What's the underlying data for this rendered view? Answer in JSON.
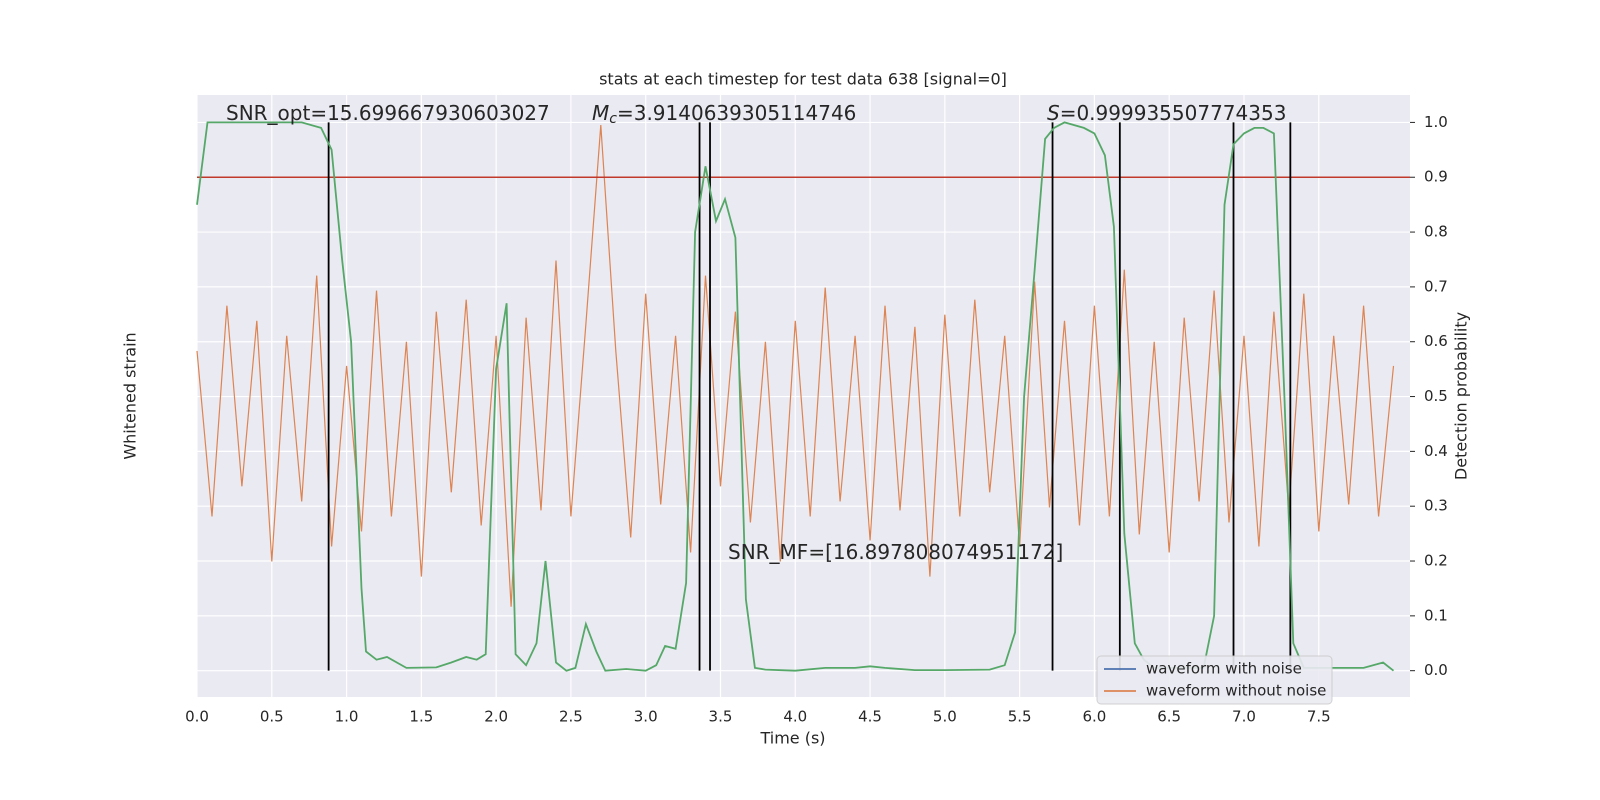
{
  "chart_data": {
    "type": "line",
    "title": "stats at each timestep for test data 638 [signal=0]",
    "xlabel": "Time (s)",
    "ylabel": "Whitened strain",
    "y2label": "Detection probability",
    "xlim": [
      0,
      8.11
    ],
    "xticks": [
      {
        "value": 0,
        "label": "0.0"
      },
      0.5,
      {
        "value": 1,
        "label": "1.0"
      },
      1.5,
      {
        "value": 2,
        "label": "2.0"
      },
      2.5,
      {
        "value": 3,
        "label": "3.0"
      },
      3.5,
      {
        "value": 4,
        "label": "4.0"
      },
      4.5,
      {
        "value": 5,
        "label": "5.0"
      },
      5.5,
      {
        "value": 6,
        "label": "6.0"
      },
      6.5,
      {
        "value": 7,
        "label": "7.0"
      },
      7.5
    ],
    "ylim": [
      -0.9,
      1.1
    ],
    "y2lim": [
      -0.048,
      1.05
    ],
    "y2ticks": [
      {
        "value": 0,
        "label": "0.0"
      },
      0.1,
      0.2,
      0.3,
      0.4,
      0.5,
      0.6,
      0.7,
      0.8,
      0.9,
      {
        "value": 1,
        "label": "1.0"
      }
    ],
    "grid": true,
    "legend_position": "lower right",
    "legend": [
      {
        "name": "waveform with noise",
        "color": "#4c72b0"
      },
      {
        "name": "waveform without noise",
        "color": "#dd8452"
      }
    ],
    "series": [
      {
        "color": "#dd8452",
        "axis": "y",
        "x": [
          0,
          0.1,
          0.2,
          0.3,
          0.4,
          0.5,
          0.6,
          0.7,
          0.8,
          0.9,
          1,
          1.1,
          1.2,
          1.3,
          1.4,
          1.5,
          1.6,
          1.7,
          1.8,
          1.9,
          2,
          2.1,
          2.2,
          2.3,
          2.4,
          2.5,
          2.6,
          2.7,
          2.8,
          2.9,
          3,
          3.1,
          3.2,
          3.3,
          3.4,
          3.5,
          3.6,
          3.7,
          3.8,
          3.9,
          4,
          4.1,
          4.2,
          4.3,
          4.4,
          4.5,
          4.6,
          4.7,
          4.8,
          4.9,
          5,
          5.1,
          5.2,
          5.3,
          5.4,
          5.5,
          5.6,
          5.7,
          5.8,
          5.9,
          6,
          6.1,
          6.2,
          6.3,
          6.4,
          6.5,
          6.6,
          6.7,
          6.8,
          6.9,
          7,
          7.1,
          7.2,
          7.3,
          7.4,
          7.5,
          7.6,
          7.7,
          7.8,
          7.9,
          8
        ],
        "values": [
          0.25,
          -0.3,
          0.4,
          -0.2,
          0.35,
          -0.45,
          0.3,
          -0.25,
          0.5,
          -0.4,
          0.2,
          -0.35,
          0.45,
          -0.3,
          0.28,
          -0.5,
          0.38,
          -0.22,
          0.42,
          -0.33,
          0.3,
          -0.6,
          0.36,
          -0.28,
          0.55,
          -0.3,
          0.34,
          1.0,
          0.25,
          -0.37,
          0.44,
          -0.26,
          0.3,
          -0.42,
          0.5,
          -0.2,
          0.38,
          -0.32,
          0.28,
          -0.45,
          0.35,
          -0.3,
          0.46,
          -0.25,
          0.3,
          -0.38,
          0.4,
          -0.28,
          0.33,
          -0.5,
          0.37,
          -0.3,
          0.42,
          -0.22,
          0.3,
          -0.4,
          0.48,
          -0.27,
          0.35,
          -0.33,
          0.4,
          -0.3,
          0.52,
          -0.36,
          0.28,
          -0.42,
          0.36,
          -0.25,
          0.45,
          -0.32,
          0.3,
          -0.4,
          0.38,
          -0.28,
          0.44,
          -0.35,
          0.3,
          -0.26,
          0.4,
          -0.3,
          0.2
        ]
      },
      {
        "color": "#55a868",
        "axis": "y2",
        "x": [
          0.0,
          0.07,
          0.2,
          0.5,
          0.7,
          0.83,
          0.9,
          0.97,
          1.03,
          1.1,
          1.13,
          1.2,
          1.27,
          1.4,
          1.6,
          1.7,
          1.8,
          1.87,
          1.93,
          2.0,
          2.07,
          2.13,
          2.2,
          2.27,
          2.33,
          2.4,
          2.47,
          2.53,
          2.6,
          2.67,
          2.73,
          2.87,
          3.0,
          3.07,
          3.13,
          3.2,
          3.27,
          3.33,
          3.4,
          3.47,
          3.53,
          3.6,
          3.67,
          3.73,
          3.8,
          4.0,
          4.2,
          4.4,
          4.5,
          4.6,
          4.8,
          5.0,
          5.3,
          5.4,
          5.47,
          5.53,
          5.6,
          5.67,
          5.73,
          5.8,
          5.93,
          6.0,
          6.07,
          6.13,
          6.2,
          6.27,
          6.33,
          6.4,
          6.6,
          6.73,
          6.8,
          6.87,
          6.93,
          7.0,
          7.07,
          7.13,
          7.2,
          7.27,
          7.33,
          7.4,
          7.8,
          7.93,
          8.0
        ],
        "values": [
          0.85,
          1.0,
          1.0,
          1.0,
          1.0,
          0.99,
          0.95,
          0.75,
          0.6,
          0.15,
          0.035,
          0.02,
          0.025,
          0.005,
          0.006,
          0.015,
          0.025,
          0.02,
          0.03,
          0.55,
          0.67,
          0.03,
          0.01,
          0.05,
          0.2,
          0.015,
          0.0,
          0.005,
          0.085,
          0.035,
          0.0,
          0.003,
          0.0,
          0.01,
          0.045,
          0.04,
          0.16,
          0.8,
          0.92,
          0.82,
          0.86,
          0.79,
          0.13,
          0.005,
          0.002,
          0.0,
          0.005,
          0.005,
          0.008,
          0.005,
          0.001,
          0.001,
          0.002,
          0.01,
          0.07,
          0.5,
          0.73,
          0.97,
          0.99,
          1.0,
          0.99,
          0.98,
          0.94,
          0.81,
          0.25,
          0.05,
          0.02,
          0.005,
          0.005,
          0.005,
          0.1,
          0.85,
          0.96,
          0.98,
          0.99,
          0.99,
          0.98,
          0.5,
          0.05,
          0.005,
          0.005,
          0.015,
          0.0
        ]
      }
    ],
    "threshold": {
      "value": 0.9,
      "color": "#c0392b",
      "axis": "y2"
    },
    "vlines": [
      0.88,
      3.36,
      3.43,
      5.72,
      6.17,
      6.93,
      7.31
    ],
    "annotations": [
      {
        "text": "SNR_opt=15.699667930603027"
      },
      {
        "symbol": "M",
        "subscript": "c",
        "text": "=3.9140639305114746"
      },
      {
        "symbol": "S",
        "text": "=0.999935507774353"
      },
      {
        "text": "SNR_MF=[16.897808074951172]"
      }
    ]
  }
}
